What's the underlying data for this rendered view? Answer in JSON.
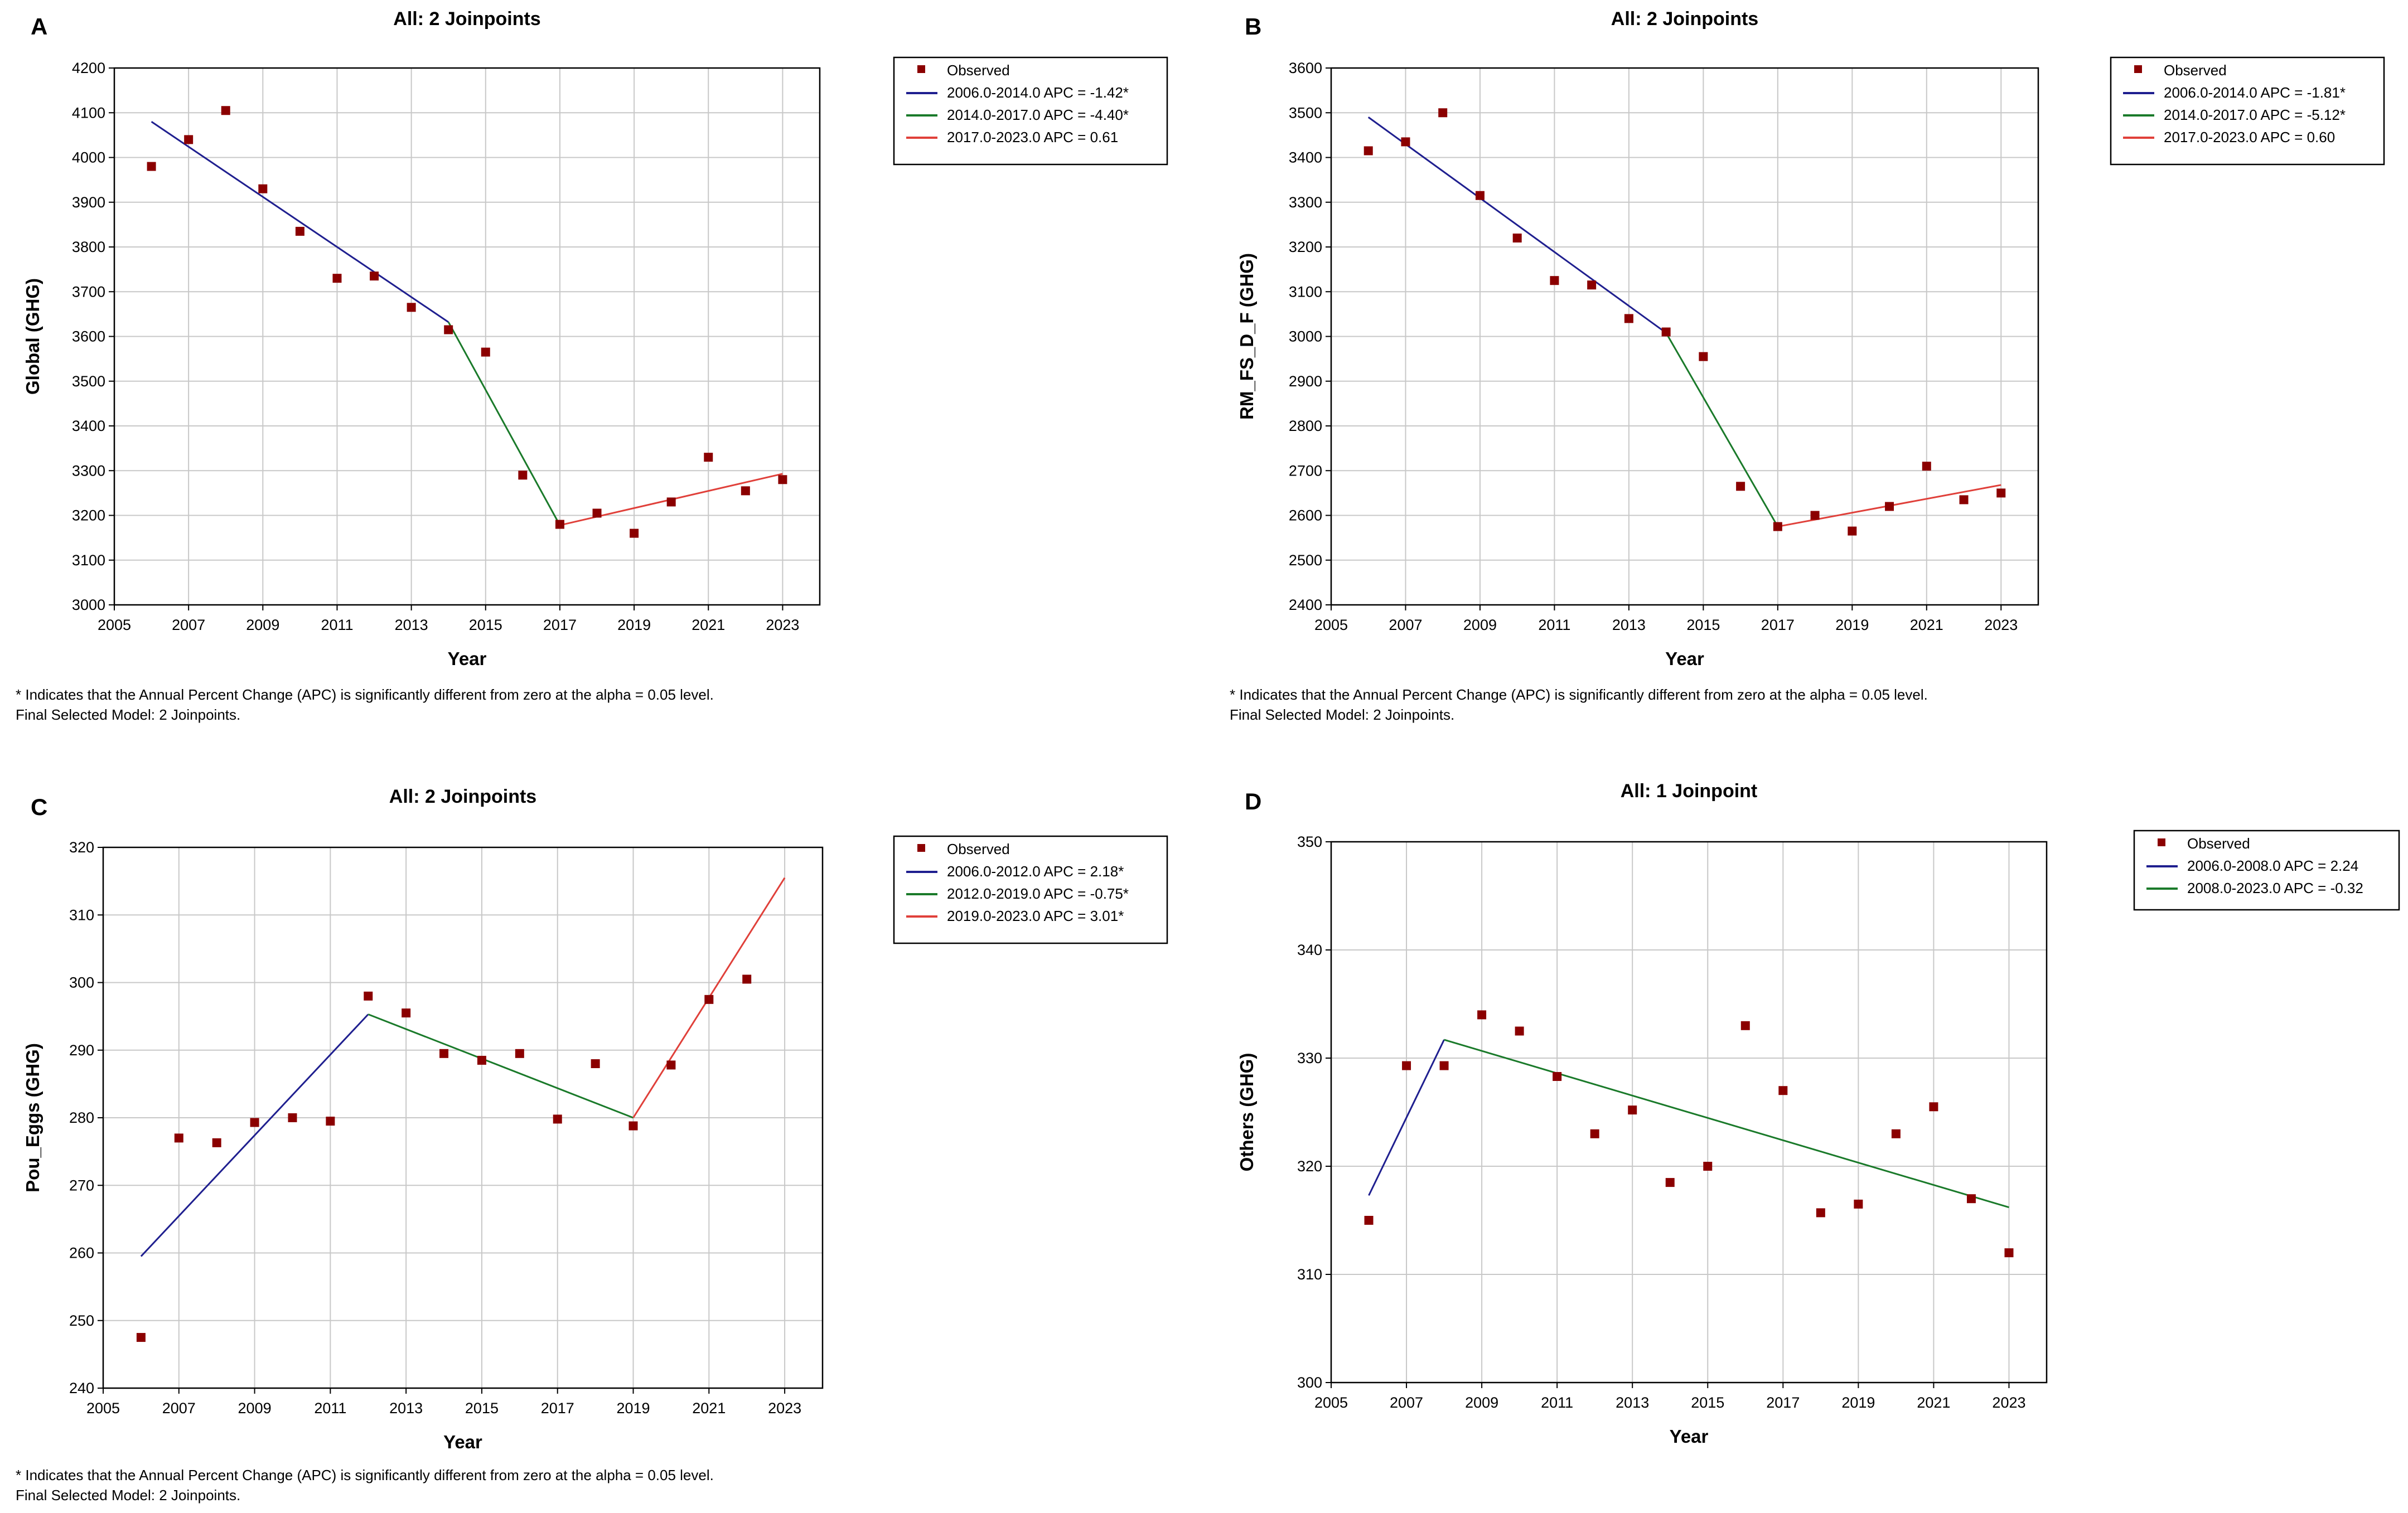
{
  "figure": {
    "footnote_line1": "* Indicates that the Annual Percent Change (APC) is significantly different from zero at the alpha = 0.05 level.",
    "footnote_line2": "Final Selected Model: 2 Joinpoints.",
    "colors": {
      "observed": "#8b0000",
      "blue": "#1f1f8f",
      "green": "#1a7a2a",
      "red": "#e0403a",
      "grid": "#c8c8c8"
    }
  },
  "chart_data": [
    {
      "panel": "A",
      "type": "scatter",
      "title": "All: 2 Joinpoints",
      "xlabel": "Year",
      "ylabel": "Global (GHG)",
      "xlim": [
        2005,
        2024
      ],
      "ylim": [
        3000,
        4200
      ],
      "xticks": [
        2005,
        2007,
        2009,
        2011,
        2013,
        2015,
        2017,
        2019,
        2021,
        2023
      ],
      "yticks": [
        3000,
        3100,
        3200,
        3300,
        3400,
        3500,
        3600,
        3700,
        3800,
        3900,
        4000,
        4100,
        4200
      ],
      "grid": true,
      "legend_position": "right",
      "observed_label": "Observed",
      "observed": {
        "x": [
          2006,
          2007,
          2008,
          2009,
          2010,
          2011,
          2012,
          2013,
          2014,
          2015,
          2016,
          2017,
          2018,
          2019,
          2020,
          2021,
          2022,
          2023
        ],
        "y": [
          3980,
          4040,
          4105,
          3930,
          3835,
          3730,
          3735,
          3665,
          3615,
          3565,
          3290,
          3180,
          3205,
          3160,
          3230,
          3330,
          3255,
          3280
        ]
      },
      "segments": [
        {
          "label": "2006.0-2014.0 APC  = -1.42*",
          "color": "blue",
          "x": [
            2006,
            2014
          ],
          "y": [
            4080,
            3632
          ]
        },
        {
          "label": "2014.0-2017.0 APC  = -4.40*",
          "color": "green",
          "x": [
            2014,
            2017
          ],
          "y": [
            3632,
            3178
          ]
        },
        {
          "label": "2017.0-2023.0 APC  =  0.61",
          "color": "red",
          "x": [
            2017,
            2023
          ],
          "y": [
            3178,
            3293
          ]
        }
      ],
      "show_footnote": true
    },
    {
      "panel": "B",
      "type": "scatter",
      "title": "All: 2 Joinpoints",
      "xlabel": "Year",
      "ylabel": "RM_FS_D_F (GHG)",
      "xlim": [
        2005,
        2024
      ],
      "ylim": [
        2400,
        3600
      ],
      "xticks": [
        2005,
        2007,
        2009,
        2011,
        2013,
        2015,
        2017,
        2019,
        2021,
        2023
      ],
      "yticks": [
        2400,
        2500,
        2600,
        2700,
        2800,
        2900,
        3000,
        3100,
        3200,
        3300,
        3400,
        3500,
        3600
      ],
      "grid": true,
      "legend_position": "right",
      "observed_label": "Observed",
      "observed": {
        "x": [
          2006,
          2007,
          2008,
          2009,
          2010,
          2011,
          2012,
          2013,
          2014,
          2015,
          2016,
          2017,
          2018,
          2019,
          2020,
          2021,
          2022,
          2023
        ],
        "y": [
          3415,
          3435,
          3500,
          3315,
          3220,
          3125,
          3115,
          3040,
          3010,
          2955,
          2665,
          2575,
          2600,
          2565,
          2620,
          2710,
          2635,
          2650
        ]
      },
      "segments": [
        {
          "label": "2006.0-2014.0 APC  = -1.81*",
          "color": "blue",
          "x": [
            2006,
            2014
          ],
          "y": [
            3490,
            3008
          ]
        },
        {
          "label": "2014.0-2017.0 APC  = -5.12*",
          "color": "green",
          "x": [
            2014,
            2017
          ],
          "y": [
            3008,
            2575
          ]
        },
        {
          "label": "2017.0-2023.0 APC  =  0.60",
          "color": "red",
          "x": [
            2017,
            2023
          ],
          "y": [
            2575,
            2668
          ]
        }
      ],
      "show_footnote": true
    },
    {
      "panel": "C",
      "type": "scatter",
      "title": "All: 2 Joinpoints",
      "xlabel": "Year",
      "ylabel": "Pou_Eggs (GHG)",
      "xlim": [
        2005,
        2024
      ],
      "ylim": [
        240,
        320
      ],
      "xticks": [
        2005,
        2007,
        2009,
        2011,
        2013,
        2015,
        2017,
        2019,
        2021,
        2023
      ],
      "yticks": [
        240,
        250,
        260,
        270,
        280,
        290,
        300,
        310,
        320
      ],
      "grid": true,
      "legend_position": "right",
      "observed_label": "Observed",
      "observed": {
        "x": [
          2006,
          2007,
          2008,
          2009,
          2010,
          2011,
          2012,
          2013,
          2014,
          2015,
          2016,
          2017,
          2018,
          2019,
          2020,
          2021,
          2022
        ],
        "y": [
          247.5,
          277,
          276.3,
          279.3,
          280,
          279.5,
          298,
          295.5,
          289.5,
          288.5,
          289.5,
          279.8,
          288,
          278.8,
          287.8,
          297.5,
          300.5
        ]
      },
      "segments": [
        {
          "label": "2006.0-2012.0 APC  = 2.18*",
          "color": "blue",
          "x": [
            2006,
            2012
          ],
          "y": [
            259.5,
            295.3
          ]
        },
        {
          "label": "2012.0-2019.0 APC  = -0.75*",
          "color": "green",
          "x": [
            2012,
            2019
          ],
          "y": [
            295.3,
            280
          ]
        },
        {
          "label": "2019.0-2023.0 APC  = 3.01*",
          "color": "red",
          "x": [
            2019,
            2023
          ],
          "y": [
            280,
            315.5
          ]
        }
      ],
      "show_footnote": true
    },
    {
      "panel": "D",
      "type": "scatter",
      "title": "All: 1 Joinpoint",
      "xlabel": "Year",
      "ylabel": "Others (GHG)",
      "xlim": [
        2005,
        2024
      ],
      "ylim": [
        300,
        350
      ],
      "xticks": [
        2005,
        2007,
        2009,
        2011,
        2013,
        2015,
        2017,
        2019,
        2021,
        2023
      ],
      "yticks": [
        300,
        310,
        320,
        330,
        340,
        350
      ],
      "grid": true,
      "legend_position": "right",
      "observed_label": "Observed",
      "observed": {
        "x": [
          2006,
          2007,
          2008,
          2009,
          2010,
          2011,
          2012,
          2013,
          2014,
          2015,
          2016,
          2017,
          2018,
          2019,
          2020,
          2021,
          2022,
          2023
        ],
        "y": [
          315,
          329.3,
          329.3,
          334,
          332.5,
          328.3,
          323,
          325.2,
          318.5,
          320,
          333,
          327,
          315.7,
          316.5,
          323,
          325.5,
          317,
          312
        ]
      },
      "segments": [
        {
          "label": "2006.0-2008.0 APC  =  2.24",
          "color": "blue",
          "x": [
            2006,
            2008
          ],
          "y": [
            317.3,
            331.7
          ]
        },
        {
          "label": "2008.0-2023.0 APC  = -0.32",
          "color": "green",
          "x": [
            2008,
            2023
          ],
          "y": [
            331.7,
            316.2
          ]
        }
      ],
      "show_footnote": false
    }
  ]
}
